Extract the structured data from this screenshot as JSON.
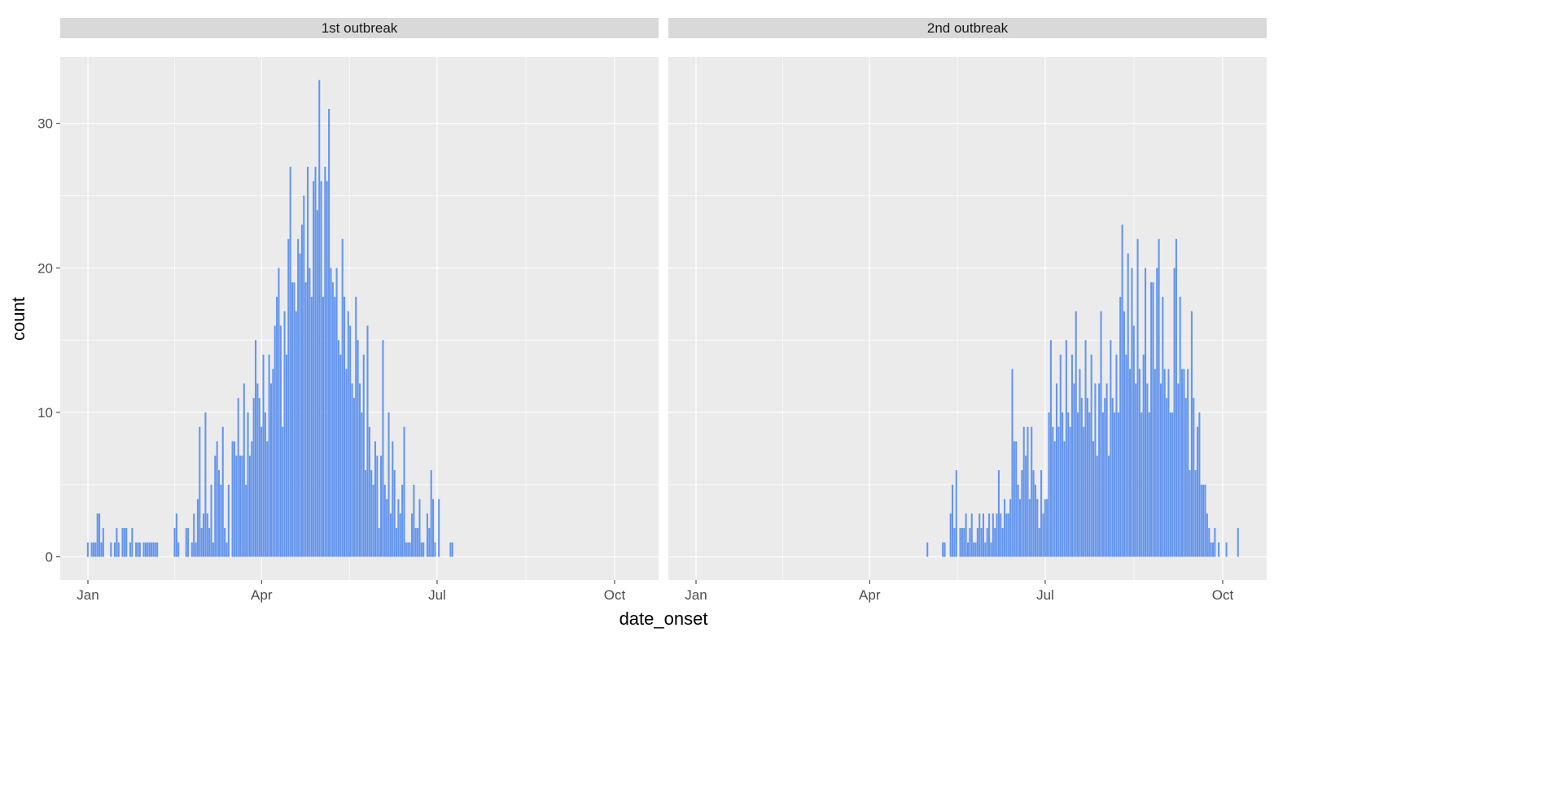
{
  "chart_data": {
    "type": "bar",
    "xlabel": "date_onset",
    "ylabel": "count",
    "ylim": [
      -1.6,
      34.6
    ],
    "y_ticks": [
      0,
      10,
      20,
      30
    ],
    "x_ticks": [
      {
        "label": "Jan",
        "date": "Jan 01"
      },
      {
        "label": "Apr",
        "date": "Apr 01"
      },
      {
        "label": "Jul",
        "date": "Jul 01"
      },
      {
        "label": "Oct",
        "date": "Oct 01"
      }
    ],
    "grid": true,
    "bar_color": "#6495ED",
    "bin": "1 day",
    "facets": [
      {
        "title": "1st outbreak",
        "start": "Jan 01",
        "daily_counts": [
          1,
          0,
          1,
          1,
          1,
          3,
          3,
          1,
          2,
          0,
          0,
          0,
          1,
          0,
          1,
          2,
          1,
          0,
          2,
          2,
          2,
          0,
          1,
          2,
          0,
          1,
          1,
          1,
          0,
          1,
          1,
          1,
          1,
          1,
          1,
          1,
          1,
          0,
          0,
          0,
          0,
          0,
          0,
          0,
          0,
          2,
          3,
          1,
          0,
          0,
          0,
          2,
          2,
          0,
          1,
          3,
          1,
          4,
          9,
          2,
          3,
          10,
          3,
          2,
          5,
          1,
          7,
          8,
          6,
          5,
          9,
          2,
          1,
          5,
          0,
          8,
          8,
          7,
          11,
          7,
          7,
          12,
          5,
          10,
          7,
          8,
          11,
          15,
          12,
          11,
          9,
          14,
          10,
          8,
          14,
          12,
          13,
          16,
          18,
          20,
          16,
          9,
          17,
          14,
          22,
          27,
          19,
          19,
          17,
          22,
          21,
          23,
          25,
          19,
          27,
          20,
          18,
          26,
          27,
          24,
          33,
          26,
          18,
          27,
          26,
          31,
          20,
          19,
          18,
          20,
          15,
          14,
          22,
          18,
          13,
          17,
          16,
          12,
          11,
          18,
          15,
          12,
          10,
          14,
          6,
          16,
          9,
          6,
          5,
          8,
          7,
          2,
          7,
          15,
          5,
          4,
          10,
          3,
          8,
          6,
          2,
          4,
          3,
          5,
          9,
          1,
          1,
          1,
          3,
          5,
          2,
          2,
          4,
          1,
          1,
          0,
          3,
          2,
          6,
          4,
          1,
          0,
          4,
          0,
          0,
          0,
          0,
          0,
          1,
          1
        ]
      },
      {
        "title": "2nd outbreak",
        "start": "May 01",
        "daily_counts": [
          1,
          0,
          0,
          0,
          0,
          0,
          0,
          0,
          1,
          1,
          0,
          0,
          3,
          5,
          2,
          6,
          0,
          2,
          2,
          2,
          3,
          1,
          2,
          3,
          1,
          1,
          2,
          3,
          2,
          3,
          1,
          2,
          3,
          1,
          3,
          2,
          3,
          6,
          3,
          2,
          4,
          3,
          3,
          4,
          13,
          8,
          8,
          5,
          4,
          6,
          9,
          7,
          9,
          4,
          9,
          6,
          5,
          4,
          2,
          6,
          3,
          4,
          4,
          10,
          15,
          9,
          8,
          12,
          9,
          14,
          10,
          8,
          15,
          10,
          9,
          14,
          12,
          17,
          10,
          13,
          11,
          9,
          15,
          11,
          10,
          14,
          8,
          12,
          7,
          12,
          17,
          10,
          11,
          12,
          7,
          15,
          11,
          10,
          14,
          10,
          18,
          23,
          17,
          14,
          21,
          13,
          20,
          16,
          12,
          22,
          13,
          10,
          14,
          20,
          12,
          10,
          19,
          19,
          13,
          20,
          22,
          12,
          18,
          13,
          11,
          13,
          10,
          10,
          20,
          22,
          12,
          18,
          13,
          13,
          11,
          13,
          6,
          17,
          11,
          6,
          9,
          10,
          5,
          5,
          5,
          3,
          2,
          1,
          1,
          2,
          0,
          1,
          0,
          0,
          0,
          1,
          0,
          0,
          0,
          0,
          0,
          2
        ]
      }
    ]
  }
}
